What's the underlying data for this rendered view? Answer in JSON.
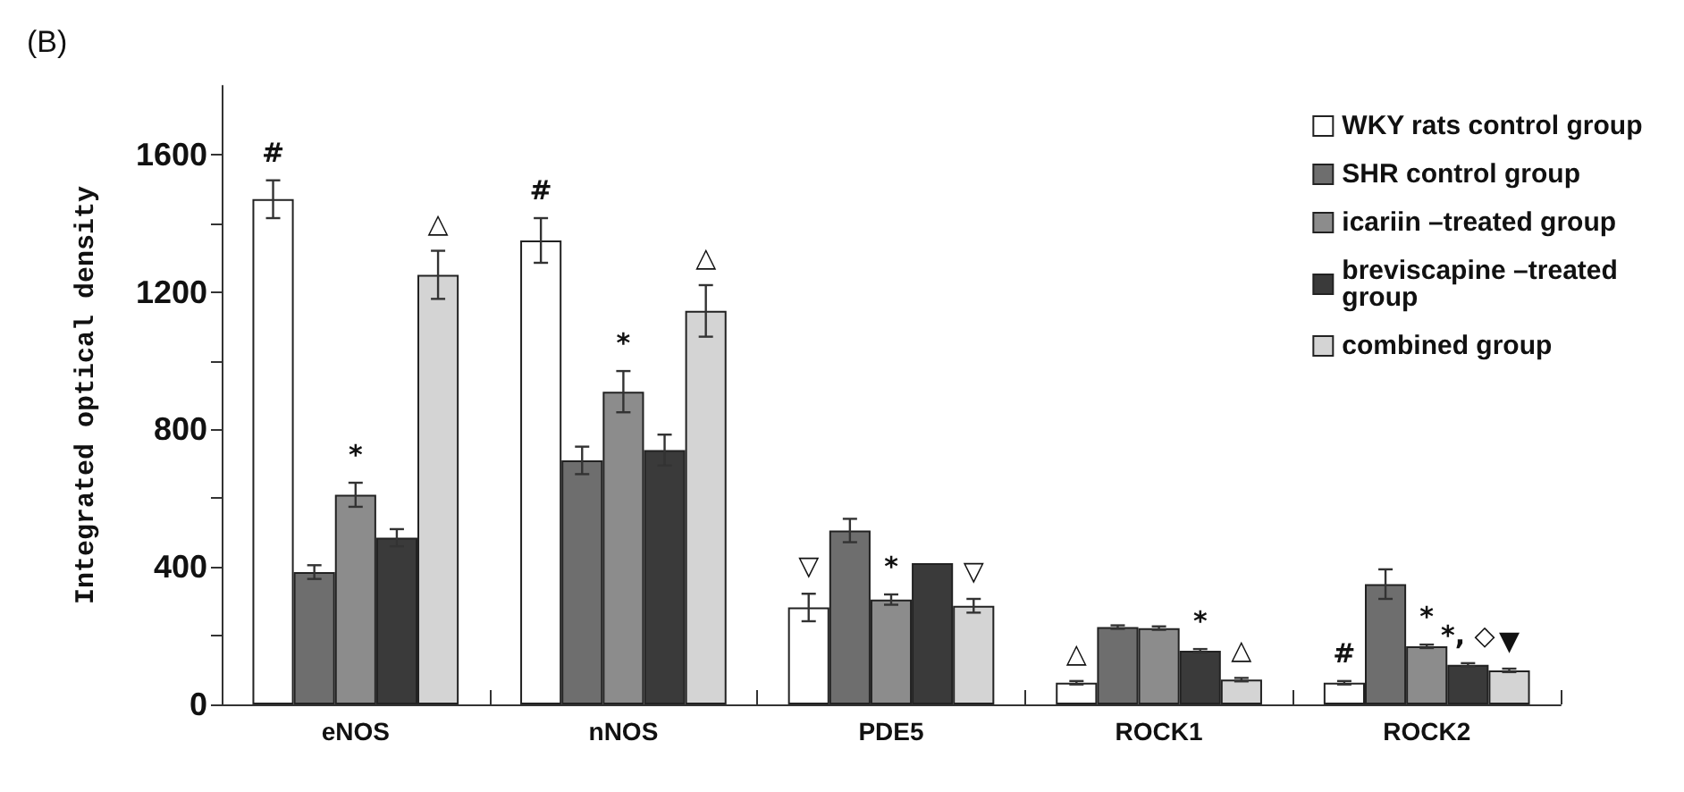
{
  "chart_data": {
    "type": "bar",
    "title": "(B)",
    "ylabel": "Integrated optical density",
    "categories": [
      "eNOS",
      "nNOS",
      "PDE5",
      "ROCK1",
      "ROCK2"
    ],
    "series": [
      {
        "name": "WKY rats control group",
        "color": "#ffffff",
        "values": [
          1470,
          1350,
          282,
          63,
          63
        ],
        "errors": [
          55,
          65,
          40,
          5,
          5
        ],
        "value_labels": [
          "#",
          "#",
          "▽",
          "△",
          "#"
        ]
      },
      {
        "name": "SHR control group",
        "color": "#6e6e6e",
        "values": [
          385,
          710,
          506,
          225,
          350
        ],
        "errors": [
          20,
          40,
          34,
          5,
          43
        ],
        "value_labels": [
          null,
          null,
          null,
          null,
          null
        ]
      },
      {
        "name": "icariin –treated group",
        "color": "#8c8c8c",
        "values": [
          610,
          910,
          305,
          222,
          169
        ],
        "errors": [
          35,
          60,
          15,
          5,
          5
        ],
        "value_labels": [
          "*",
          "*",
          "*",
          null,
          "*"
        ]
      },
      {
        "name": "breviscapine –treated group",
        "color": "#3a3a3a",
        "values": [
          485,
          740,
          411,
          156,
          115
        ],
        "errors": [
          25,
          45,
          null,
          5,
          5
        ],
        "value_labels": [
          null,
          null,
          null,
          "*",
          "*, ◇"
        ]
      },
      {
        "name": "combined group",
        "color": "#d4d4d4",
        "values": [
          1250,
          1145,
          287,
          72,
          99
        ],
        "errors": [
          70,
          75,
          20,
          5,
          5
        ],
        "value_labels": [
          "△",
          "△",
          "▽",
          "△",
          "▼"
        ]
      }
    ],
    "ylim": [
      0,
      1800
    ],
    "yticks": [
      0,
      {
        "value": 200,
        "label": null
      },
      400,
      {
        "value": 600,
        "label": null
      },
      800,
      {
        "value": 1000,
        "label": null
      },
      1200,
      {
        "value": 1400,
        "label": null
      },
      1600
    ],
    "grid": false,
    "legend": "top right"
  }
}
